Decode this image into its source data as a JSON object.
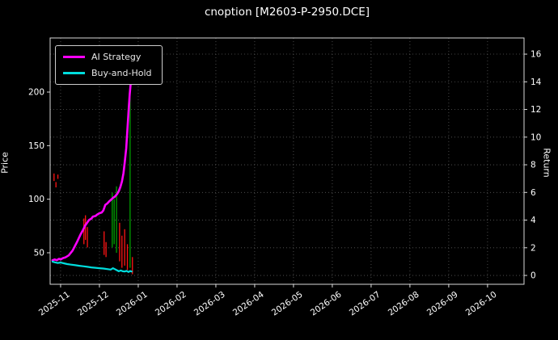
{
  "title": "cnoption [M2603-P-2950.DCE]",
  "chart_data": {
    "type": "line",
    "title": "cnoption [M2603-P-2950.DCE]",
    "grid": true,
    "legend_position": "upper-left",
    "colors": {
      "background": "#000000",
      "grid": "#5a5a5a",
      "spine": "#d9d9d9",
      "text": "#ffffff",
      "red": "#ff1414",
      "green": "#00a000",
      "ai_strategy": "#ff00ff",
      "buy_and_hold": "#00dddd"
    },
    "x_range": {
      "min": -0.27,
      "max": 11.94
    },
    "x_ticks": [
      {
        "value": 0,
        "label": "2025-11"
      },
      {
        "value": 1,
        "label": "2025-12"
      },
      {
        "value": 2,
        "label": "2026-01"
      },
      {
        "value": 3,
        "label": "2026-02"
      },
      {
        "value": 4,
        "label": "2026-03"
      },
      {
        "value": 5,
        "label": "2026-04"
      },
      {
        "value": 6,
        "label": "2026-05"
      },
      {
        "value": 7,
        "label": "2026-06"
      },
      {
        "value": 8,
        "label": "2026-07"
      },
      {
        "value": 9,
        "label": "2026-08"
      },
      {
        "value": 10,
        "label": "2026-09"
      },
      {
        "value": 11,
        "label": "2026-10"
      }
    ],
    "left_axis": {
      "label": "Price",
      "min": 20.6,
      "max": 250.5,
      "ticks": [
        50,
        100,
        150,
        200
      ]
    },
    "right_axis": {
      "label": "Return",
      "min": -0.64,
      "max": 17.17,
      "ticks": [
        0,
        2,
        4,
        6,
        8,
        10,
        12,
        14,
        16
      ]
    },
    "series": [
      {
        "name": "AI Strategy",
        "color": "#ff00ff",
        "axis": "right",
        "points": [
          [
            -0.21,
            1.1
          ],
          [
            -0.15,
            1.15
          ],
          [
            -0.1,
            1.1
          ],
          [
            -0.04,
            1.2
          ],
          [
            0.0,
            1.15
          ],
          [
            0.06,
            1.25
          ],
          [
            0.12,
            1.3
          ],
          [
            0.21,
            1.45
          ],
          [
            0.31,
            1.8
          ],
          [
            0.42,
            2.4
          ],
          [
            0.52,
            3.0
          ],
          [
            0.58,
            3.3
          ],
          [
            0.63,
            3.6
          ],
          [
            0.68,
            3.8
          ],
          [
            0.73,
            4.0
          ],
          [
            0.79,
            4.1
          ],
          [
            0.83,
            4.25
          ],
          [
            0.9,
            4.3
          ],
          [
            0.94,
            4.4
          ],
          [
            1.0,
            4.5
          ],
          [
            1.06,
            4.55
          ],
          [
            1.1,
            4.7
          ],
          [
            1.15,
            5.1
          ],
          [
            1.2,
            5.2
          ],
          [
            1.25,
            5.35
          ],
          [
            1.31,
            5.5
          ],
          [
            1.35,
            5.6
          ],
          [
            1.4,
            5.7
          ],
          [
            1.46,
            5.9
          ],
          [
            1.5,
            6.1
          ],
          [
            1.54,
            6.4
          ],
          [
            1.58,
            6.8
          ],
          [
            1.62,
            7.4
          ],
          [
            1.65,
            8.1
          ],
          [
            1.69,
            9.2
          ],
          [
            1.72,
            10.5
          ],
          [
            1.75,
            11.8
          ],
          [
            1.78,
            13.1
          ],
          [
            1.81,
            14.0
          ],
          [
            1.83,
            14.3
          ]
        ]
      },
      {
        "name": "Buy-and-Hold",
        "color": "#00dddd",
        "axis": "right",
        "points": [
          [
            -0.21,
            1.0
          ],
          [
            -0.15,
            0.95
          ],
          [
            -0.08,
            0.9
          ],
          [
            0.0,
            0.93
          ],
          [
            0.08,
            0.88
          ],
          [
            0.17,
            0.82
          ],
          [
            0.27,
            0.78
          ],
          [
            0.38,
            0.74
          ],
          [
            0.48,
            0.7
          ],
          [
            0.58,
            0.66
          ],
          [
            0.69,
            0.62
          ],
          [
            0.79,
            0.58
          ],
          [
            0.9,
            0.55
          ],
          [
            1.0,
            0.52
          ],
          [
            1.1,
            0.5
          ],
          [
            1.2,
            0.46
          ],
          [
            1.29,
            0.42
          ],
          [
            1.35,
            0.52
          ],
          [
            1.4,
            0.45
          ],
          [
            1.46,
            0.36
          ],
          [
            1.5,
            0.3
          ],
          [
            1.55,
            0.36
          ],
          [
            1.6,
            0.3
          ],
          [
            1.65,
            0.28
          ],
          [
            1.7,
            0.33
          ],
          [
            1.75,
            0.25
          ],
          [
            1.79,
            0.32
          ],
          [
            1.83,
            0.28
          ]
        ]
      }
    ],
    "candles": [
      {
        "x": -0.17,
        "low": 117,
        "high": 124,
        "c": "red"
      },
      {
        "x": -0.12,
        "low": 111,
        "high": 116,
        "c": "red"
      },
      {
        "x": -0.07,
        "low": 119,
        "high": 123,
        "c": "red"
      },
      {
        "x": 0.6,
        "low": 58,
        "high": 82,
        "c": "red"
      },
      {
        "x": 0.64,
        "low": 62,
        "high": 85,
        "c": "red"
      },
      {
        "x": 0.69,
        "low": 55,
        "high": 74,
        "c": "red"
      },
      {
        "x": 1.12,
        "low": 48,
        "high": 70,
        "c": "red"
      },
      {
        "x": 1.17,
        "low": 46,
        "high": 60,
        "c": "red"
      },
      {
        "x": 1.33,
        "low": 55,
        "high": 106,
        "c": "green"
      },
      {
        "x": 1.38,
        "low": 58,
        "high": 100,
        "c": "green"
      },
      {
        "x": 1.44,
        "low": 50,
        "high": 112,
        "c": "green"
      },
      {
        "x": 1.52,
        "low": 42,
        "high": 78,
        "c": "red"
      },
      {
        "x": 1.58,
        "low": 36,
        "high": 66,
        "c": "red"
      },
      {
        "x": 1.65,
        "low": 38,
        "high": 72,
        "c": "red"
      },
      {
        "x": 1.72,
        "low": 34,
        "high": 58,
        "c": "red"
      },
      {
        "x": 1.79,
        "low": 36,
        "high": 205,
        "c": "green"
      },
      {
        "x": 1.85,
        "low": 30,
        "high": 46,
        "c": "red"
      }
    ]
  }
}
